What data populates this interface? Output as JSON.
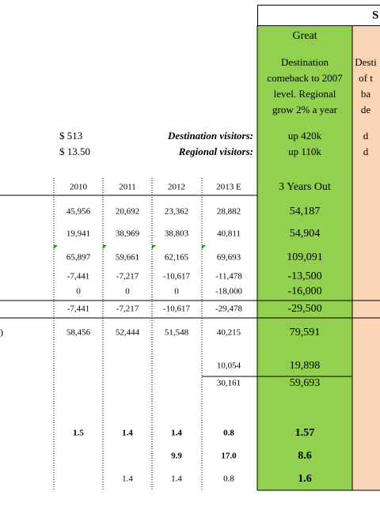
{
  "header": {
    "title": "S"
  },
  "scenario": {
    "name": "Great",
    "description": [
      "Destination",
      "comeback to 2007",
      "level. Regional",
      "grow 2% a year"
    ],
    "next_description": [
      "Desti",
      "of t",
      "ba",
      "de"
    ]
  },
  "assumptions": [
    {
      "left": "$   513",
      "label": "Destination visitors:",
      "value": "up 420k",
      "next": "d"
    },
    {
      "left": "$ 13.50",
      "label": "Regional visitors:",
      "value": "up 110k",
      "next": "d"
    }
  ],
  "table": {
    "columns": [
      "2010",
      "2011",
      "2012",
      "2013 E",
      "3 Years Out"
    ],
    "rows": [
      [
        null,
        [
          "45,956",
          "20,692",
          "23,362",
          "28,882",
          "54,187"
        ]
      ],
      [
        null,
        [
          "19,941",
          "38,969",
          "38,803",
          "40,811",
          "54,904"
        ]
      ],
      [
        null,
        [
          "65,897",
          "59,661",
          "62,165",
          "69,693",
          "109,091"
        ]
      ],
      [
        null,
        [
          "-7,441",
          "-7,217",
          "-10,617",
          "-11,478",
          "-13,500"
        ]
      ],
      [
        null,
        [
          "0",
          "0",
          "0",
          "-18,000",
          "-16,000"
        ]
      ],
      [
        null,
        [
          "-7,441",
          "-7,217",
          "-10,617",
          "-29,478",
          "-29,500"
        ]
      ],
      [
        ")",
        [
          "58,456",
          "52,444",
          "51,548",
          "40,215",
          "79,591"
        ]
      ],
      [
        null,
        [
          null,
          null,
          null,
          "10,054",
          "19,898"
        ]
      ],
      [
        null,
        [
          null,
          null,
          null,
          "30,161",
          "59,693"
        ]
      ],
      [
        null,
        [
          "1.5",
          "1.4",
          "1.4",
          "0.8",
          "1.57"
        ]
      ],
      [
        null,
        [
          null,
          null,
          "9.9",
          "17.0",
          "8.6"
        ]
      ],
      [
        null,
        [
          null,
          "1.4",
          "1.4",
          "0.8",
          "1.6"
        ]
      ]
    ]
  }
}
